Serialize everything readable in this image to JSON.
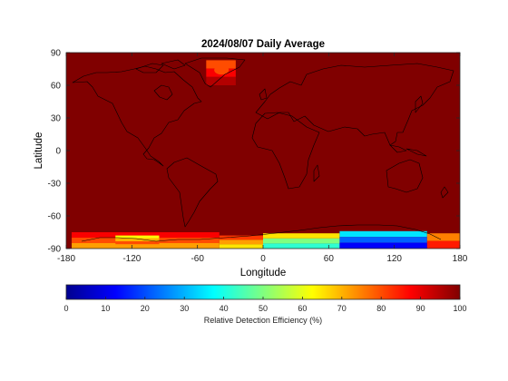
{
  "chart_data": {
    "type": "heatmap",
    "title": "2024/08/07 Daily Average",
    "xlabel": "Longitude",
    "ylabel": "Latitude",
    "xlim": [
      -180,
      180
    ],
    "ylim": [
      -90,
      90
    ],
    "xticks": [
      -180,
      -120,
      -60,
      0,
      60,
      120,
      180
    ],
    "yticks": [
      90,
      60,
      30,
      0,
      -30,
      -60,
      -90
    ],
    "xtick_labels": [
      "-180",
      "-120",
      "-60",
      "0",
      "60",
      "120",
      "180"
    ],
    "ytick_labels": [
      "90",
      "60",
      "30",
      "0",
      "-30",
      "-60",
      "-90"
    ],
    "colormap": "jet",
    "colorbar": {
      "label": "Relative Detection Efficiency (%)",
      "range": [
        0,
        100
      ],
      "ticks": [
        0,
        10,
        20,
        30,
        40,
        50,
        60,
        70,
        80,
        90,
        100
      ],
      "tick_labels": [
        "0",
        "10",
        "20",
        "30",
        "40",
        "50",
        "60",
        "70",
        "80",
        "90",
        "100"
      ]
    },
    "background_value": 100,
    "regions": [
      {
        "name": "Greenland",
        "lon": [
          -52,
          -25
        ],
        "lat": [
          60,
          83
        ],
        "values": [
          80,
          88,
          95
        ],
        "peak_value": 80,
        "peak_lon": -38,
        "peak_lat": 74
      },
      {
        "name": "Antarctic band, 175W-40W",
        "lon": [
          -175,
          -40
        ],
        "lat": [
          -90,
          -75
        ],
        "values": [
          88,
          80,
          72
        ]
      },
      {
        "name": "Antarctica 135W-95W",
        "lon": [
          -135,
          -95
        ],
        "lat": [
          -86,
          -78
        ],
        "values": [
          62,
          70,
          80
        ]
      },
      {
        "name": "Antarctica 40W-0",
        "lon": [
          -40,
          0
        ],
        "lat": [
          -90,
          -78
        ],
        "values": [
          82,
          72,
          65
        ]
      },
      {
        "name": "Antarctica 0-70E",
        "lon": [
          0,
          70
        ],
        "lat": [
          -90,
          -76
        ],
        "values": [
          65,
          50,
          42
        ]
      },
      {
        "name": "Antarctica 70E-150E",
        "lon": [
          70,
          150
        ],
        "lat": [
          -90,
          -74
        ],
        "values": [
          35,
          22,
          12
        ]
      },
      {
        "name": "Antarctica 150E-180E",
        "lon": [
          150,
          180
        ],
        "lat": [
          -90,
          -76
        ],
        "values": [
          75,
          85
        ]
      }
    ]
  },
  "colors": {
    "axis": "#262626",
    "coastline": "#000000"
  }
}
